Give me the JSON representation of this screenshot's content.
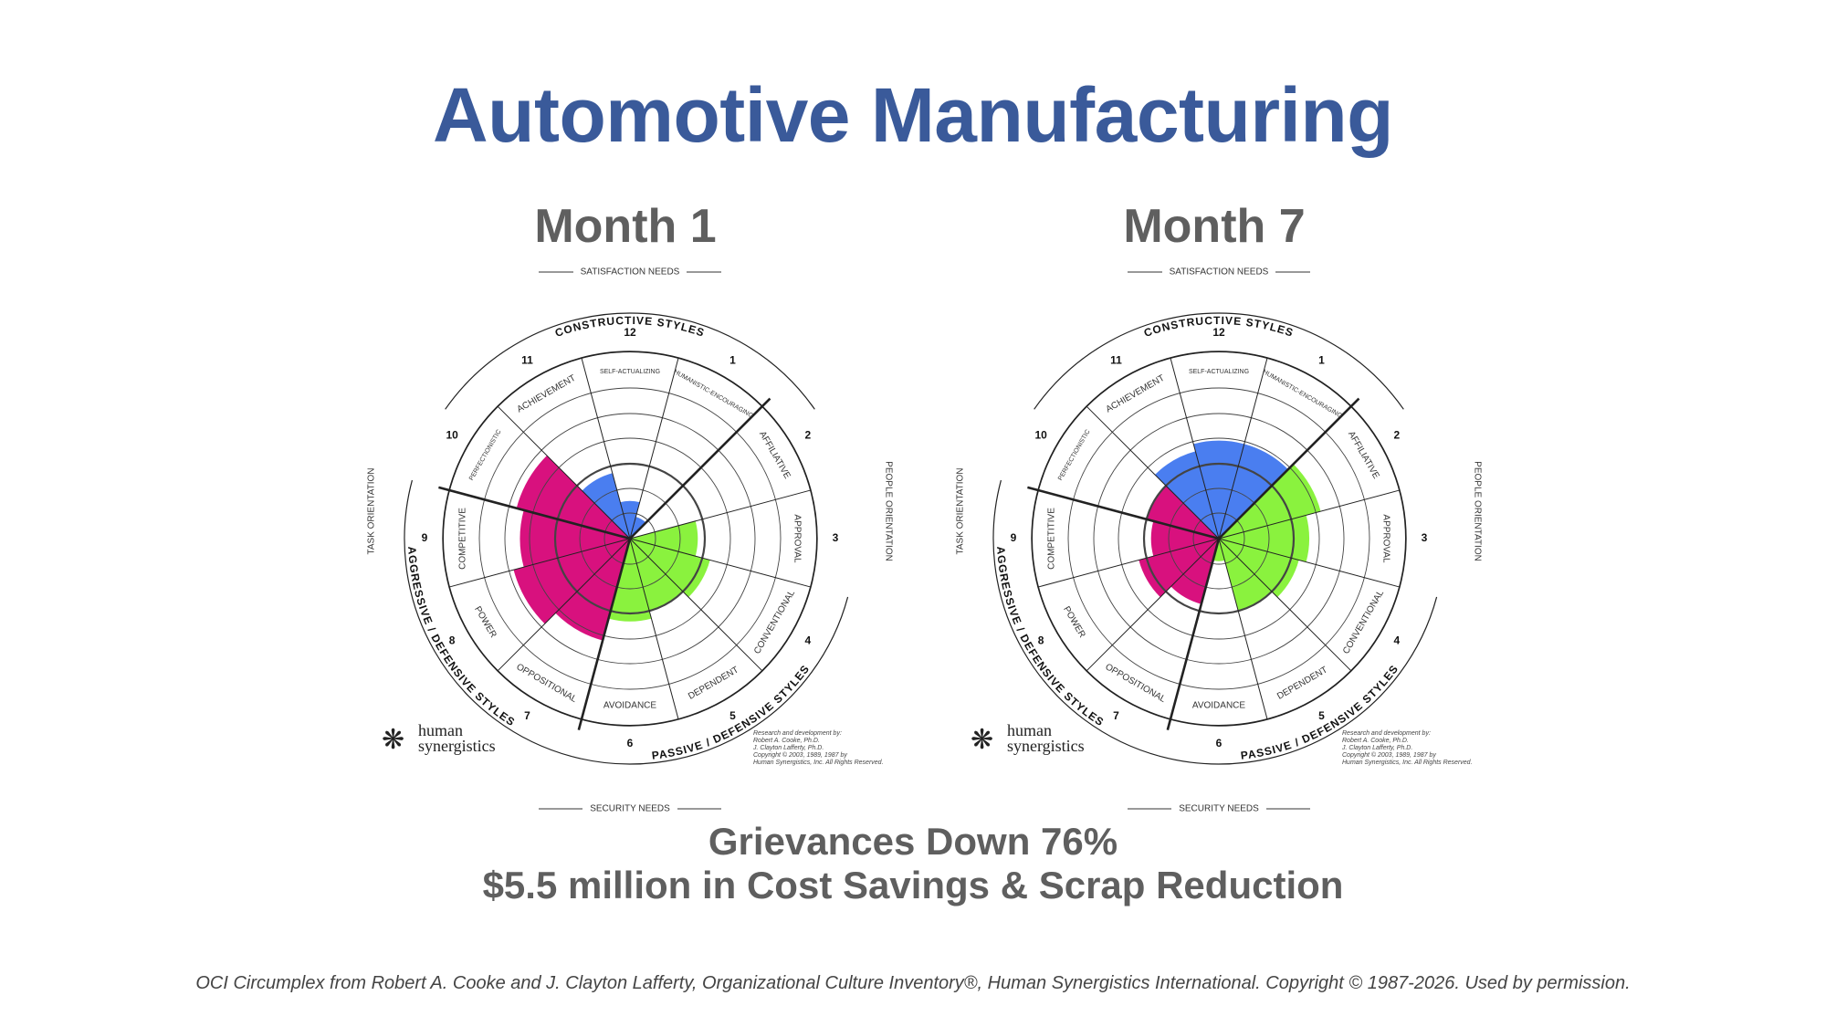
{
  "title": "Automotive Manufacturing",
  "logo_text": [
    "human",
    "synergistics"
  ],
  "credit_text": [
    "Research and development by:",
    "Robert A. Cooke, Ph.D.",
    "J. Clayton Lafferty, Ph.D.",
    "Copyright © 2003, 1989, 1987 by",
    "Human Synergistics, Inc. All Rights Reserved."
  ],
  "results": [
    "Grievances Down 76%",
    "$5.5 million in Cost Savings & Scrap Reduction"
  ],
  "footnote": "OCI Circumplex from Robert A. Cooke and J. Clayton Lafferty, Organizational Culture Inventory®, Human Synergistics International. Copyright © 1987-2026. Used by permission.",
  "circumplex_labels": {
    "satisfaction": "SATISFACTION NEEDS",
    "security": "SECURITY NEEDS",
    "people": "PEOPLE ORIENTATION",
    "task": "TASK ORIENTATION",
    "constructive": "CONSTRUCTIVE STYLES",
    "passive": "PASSIVE / DEFENSIVE STYLES",
    "aggressive": "AGGRESSIVE / DEFENSIVE STYLES"
  },
  "colors": {
    "constructive": "#4a7ef0",
    "passive": "#8af23e",
    "aggressive": "#d8117e",
    "title": "#3a5a9a",
    "subtitle": "#5f5f5f"
  },
  "chart_data": [
    {
      "type": "circumplex",
      "title": "Month 1",
      "styles": [
        {
          "number": 1,
          "name": "HUMANISTIC-ENCOURAGING",
          "group": "constructive",
          "value": 15
        },
        {
          "number": 2,
          "name": "AFFILIATIVE",
          "group": "passive",
          "value": 0
        },
        {
          "number": 3,
          "name": "APPROVAL",
          "group": "passive",
          "value": 45
        },
        {
          "number": 4,
          "name": "CONVENTIONAL",
          "group": "passive",
          "value": 55
        },
        {
          "number": 5,
          "name": "DEPENDENT",
          "group": "passive",
          "value": 50
        },
        {
          "number": 6,
          "name": "AVOIDANCE",
          "group": "passive",
          "value": 55
        },
        {
          "number": 7,
          "name": "OPPOSITIONAL",
          "group": "aggressive",
          "value": 70
        },
        {
          "number": 8,
          "name": "POWER",
          "group": "aggressive",
          "value": 80
        },
        {
          "number": 9,
          "name": "COMPETITIVE",
          "group": "aggressive",
          "value": 73
        },
        {
          "number": 10,
          "name": "PERFECTIONISTIC",
          "group": "aggressive",
          "value": 78
        },
        {
          "number": 11,
          "name": "ACHIEVEMENT",
          "group": "constructive",
          "value": 45
        },
        {
          "number": 12,
          "name": "SELF-ACTUALIZING",
          "group": "constructive",
          "value": 25
        }
      ]
    },
    {
      "type": "circumplex",
      "title": "Month 7",
      "styles": [
        {
          "number": 1,
          "name": "HUMANISTIC-ENCOURAGING",
          "group": "constructive",
          "value": 65
        },
        {
          "number": 2,
          "name": "AFFILIATIVE",
          "group": "passive",
          "value": 70
        },
        {
          "number": 3,
          "name": "APPROVAL",
          "group": "passive",
          "value": 60
        },
        {
          "number": 4,
          "name": "CONVENTIONAL",
          "group": "passive",
          "value": 55
        },
        {
          "number": 5,
          "name": "DEPENDENT",
          "group": "passive",
          "value": 50
        },
        {
          "number": 6,
          "name": "AVOIDANCE",
          "group": "passive",
          "value": 15
        },
        {
          "number": 7,
          "name": "OPPOSITIONAL",
          "group": "aggressive",
          "value": 45
        },
        {
          "number": 8,
          "name": "POWER",
          "group": "aggressive",
          "value": 55
        },
        {
          "number": 9,
          "name": "COMPETITIVE",
          "group": "aggressive",
          "value": 45
        },
        {
          "number": 10,
          "name": "PERFECTIONISTIC",
          "group": "aggressive",
          "value": 50
        },
        {
          "number": 11,
          "name": "ACHIEVEMENT",
          "group": "constructive",
          "value": 60
        },
        {
          "number": 12,
          "name": "SELF-ACTUALIZING",
          "group": "constructive",
          "value": 65
        }
      ]
    }
  ]
}
